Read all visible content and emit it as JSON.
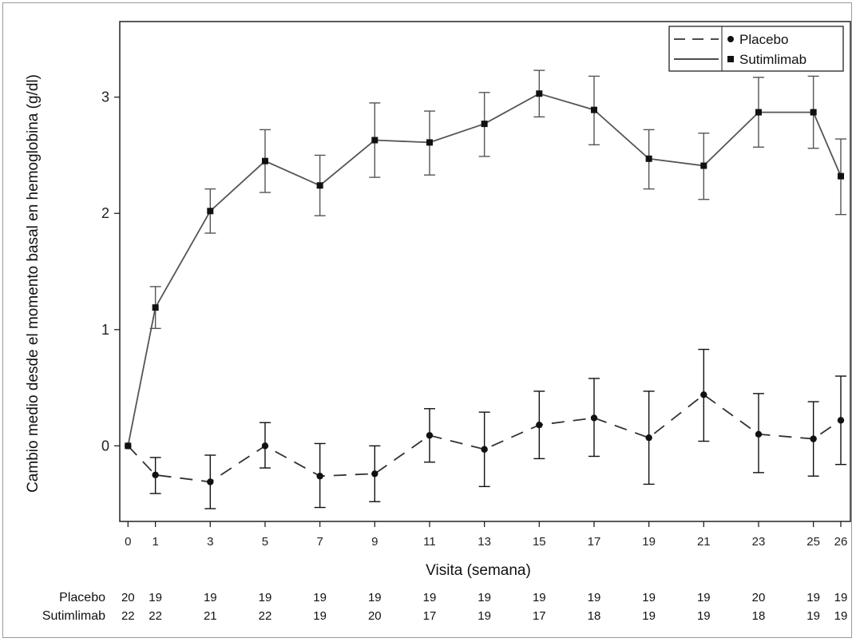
{
  "chart_data": {
    "type": "line",
    "title": "",
    "xlabel": "Visita (semana)",
    "ylabel": "Cambio medio desde el momento basal en hemoglobina  (g/dl)",
    "x": [
      0,
      1,
      3,
      5,
      7,
      9,
      11,
      13,
      15,
      17,
      19,
      21,
      23,
      25,
      26
    ],
    "xticks": [
      "0",
      "1",
      "3",
      "5",
      "7",
      "9",
      "11",
      "13",
      "15",
      "17",
      "19",
      "21",
      "23",
      "25",
      "26"
    ],
    "yticks": [
      "0",
      "1",
      "2",
      "3"
    ],
    "ylim": [
      -0.65,
      3.65
    ],
    "xlim": [
      -0.3,
      26.35
    ],
    "grid": false,
    "legend_position": "top-right",
    "series": [
      {
        "name": "Placebo",
        "line": "dashed",
        "marker": "circle",
        "color": "#111111",
        "values": [
          0.0,
          -0.25,
          -0.31,
          0.0,
          -0.26,
          -0.24,
          0.09,
          -0.03,
          0.18,
          0.24,
          0.07,
          0.44,
          0.1,
          0.06,
          0.22
        ],
        "lower": [
          0.0,
          -0.41,
          -0.54,
          -0.19,
          -0.53,
          -0.48,
          -0.14,
          -0.35,
          -0.11,
          -0.09,
          -0.33,
          0.04,
          -0.23,
          -0.26,
          -0.16
        ],
        "upper": [
          0.0,
          -0.1,
          -0.08,
          0.2,
          0.02,
          0.0,
          0.32,
          0.29,
          0.47,
          0.58,
          0.47,
          0.83,
          0.45,
          0.38,
          0.6
        ]
      },
      {
        "name": "Sutimlimab",
        "line": "solid",
        "marker": "square",
        "color": "#555555",
        "values": [
          0.0,
          1.19,
          2.02,
          2.45,
          2.24,
          2.63,
          2.61,
          2.77,
          3.03,
          2.89,
          2.47,
          2.41,
          2.87,
          2.87,
          2.32
        ],
        "lower": [
          0.0,
          1.01,
          1.83,
          2.18,
          1.98,
          2.31,
          2.33,
          2.49,
          2.83,
          2.59,
          2.21,
          2.12,
          2.57,
          2.56,
          1.99
        ],
        "upper": [
          0.0,
          1.37,
          2.21,
          2.72,
          2.5,
          2.95,
          2.88,
          3.04,
          3.23,
          3.18,
          2.72,
          2.69,
          3.17,
          3.18,
          2.64
        ]
      }
    ],
    "at_risk": [
      {
        "label": "Placebo",
        "counts": [
          "20",
          "19",
          "19",
          "19",
          "19",
          "19",
          "19",
          "19",
          "19",
          "19",
          "19",
          "19",
          "20",
          "19",
          "19"
        ]
      },
      {
        "label": "Sutimlimab",
        "counts": [
          "22",
          "22",
          "21",
          "22",
          "19",
          "20",
          "17",
          "19",
          "17",
          "18",
          "19",
          "19",
          "18",
          "19",
          "19"
        ]
      }
    ]
  }
}
